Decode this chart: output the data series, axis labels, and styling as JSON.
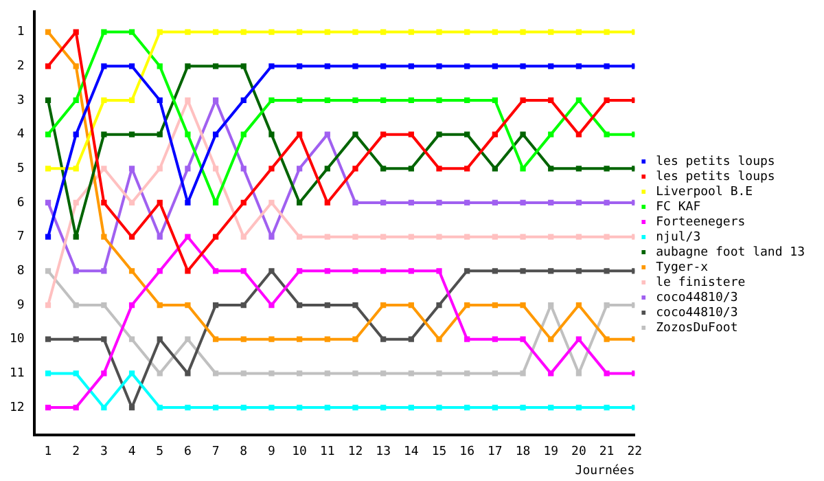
{
  "chart_data": {
    "type": "line",
    "xlabel": "Journées",
    "x": [
      1,
      2,
      3,
      4,
      5,
      6,
      7,
      8,
      9,
      10,
      11,
      12,
      13,
      14,
      15,
      16,
      17,
      18,
      19,
      20,
      21,
      22
    ],
    "xlim": [
      0.5,
      22
    ],
    "xticks": [
      1,
      2,
      3,
      4,
      5,
      6,
      7,
      8,
      9,
      10,
      11,
      12,
      13,
      14,
      15,
      16,
      17,
      18,
      19,
      20,
      21,
      22
    ],
    "ylim": [
      12.8,
      0.4
    ],
    "yticks": [
      1,
      2,
      3,
      4,
      5,
      6,
      7,
      8,
      9,
      10,
      11,
      12
    ],
    "legend": "right",
    "marker": "square",
    "series": [
      {
        "name": "les petits loups",
        "color": "#0000ff",
        "values": [
          7,
          4,
          2,
          2,
          3,
          6,
          4,
          3,
          2,
          2,
          2,
          2,
          2,
          2,
          2,
          2,
          2,
          2,
          2,
          2,
          2,
          2
        ]
      },
      {
        "name": "les petits loups",
        "color": "#ff0000",
        "values": [
          2,
          1,
          6,
          7,
          6,
          8,
          7,
          6,
          5,
          4,
          6,
          5,
          4,
          4,
          5,
          5,
          4,
          3,
          3,
          4,
          3,
          3
        ]
      },
      {
        "name": "Liverpool B.E",
        "color": "#ffff00",
        "values": [
          5,
          5,
          3,
          3,
          1,
          1,
          1,
          1,
          1,
          1,
          1,
          1,
          1,
          1,
          1,
          1,
          1,
          1,
          1,
          1,
          1,
          1
        ]
      },
      {
        "name": "FC KAF",
        "color": "#00ff00",
        "values": [
          4,
          3,
          1,
          1,
          2,
          4,
          6,
          4,
          3,
          3,
          3,
          3,
          3,
          3,
          3,
          3,
          3,
          5,
          4,
          3,
          4,
          4
        ]
      },
      {
        "name": "Forteenegers",
        "color": "#ff00ff",
        "values": [
          12,
          12,
          11,
          9,
          8,
          7,
          8,
          8,
          9,
          8,
          8,
          8,
          8,
          8,
          8,
          10,
          10,
          10,
          11,
          10,
          11,
          11
        ]
      },
      {
        "name": "njul/3",
        "color": "#00ffff",
        "values": [
          11,
          11,
          12,
          11,
          12,
          12,
          12,
          12,
          12,
          12,
          12,
          12,
          12,
          12,
          12,
          12,
          12,
          12,
          12,
          12,
          12,
          12
        ]
      },
      {
        "name": "aubagne foot land 13",
        "color": "#006400",
        "values": [
          3,
          7,
          4,
          4,
          4,
          2,
          2,
          2,
          4,
          6,
          5,
          4,
          5,
          5,
          4,
          4,
          5,
          4,
          5,
          5,
          5,
          5
        ]
      },
      {
        "name": "Tyger-x",
        "color": "#ff9900",
        "values": [
          1,
          2,
          7,
          8,
          9,
          9,
          10,
          10,
          10,
          10,
          10,
          10,
          9,
          9,
          10,
          9,
          9,
          9,
          10,
          9,
          10,
          10
        ]
      },
      {
        "name": "le finistere",
        "color": "#ffc0c0",
        "values": [
          9,
          6,
          5,
          6,
          5,
          3,
          5,
          7,
          6,
          7,
          7,
          7,
          7,
          7,
          7,
          7,
          7,
          7,
          7,
          7,
          7,
          7
        ]
      },
      {
        "name": "coco44810/3",
        "color": "#a060f0",
        "values": [
          6,
          8,
          8,
          5,
          7,
          5,
          3,
          5,
          7,
          5,
          4,
          6,
          6,
          6,
          6,
          6,
          6,
          6,
          6,
          6,
          6,
          6
        ]
      },
      {
        "name": "coco44810/3",
        "color": "#505050",
        "values": [
          10,
          10,
          10,
          12,
          10,
          11,
          9,
          9,
          8,
          9,
          9,
          9,
          10,
          10,
          9,
          8,
          8,
          8,
          8,
          8,
          8,
          8
        ]
      },
      {
        "name": "ZozosDuFoot",
        "color": "#c0c0c0",
        "values": [
          8,
          9,
          9,
          10,
          11,
          10,
          11,
          11,
          11,
          11,
          11,
          11,
          11,
          11,
          11,
          11,
          11,
          11,
          9,
          11,
          9,
          9
        ]
      }
    ]
  }
}
